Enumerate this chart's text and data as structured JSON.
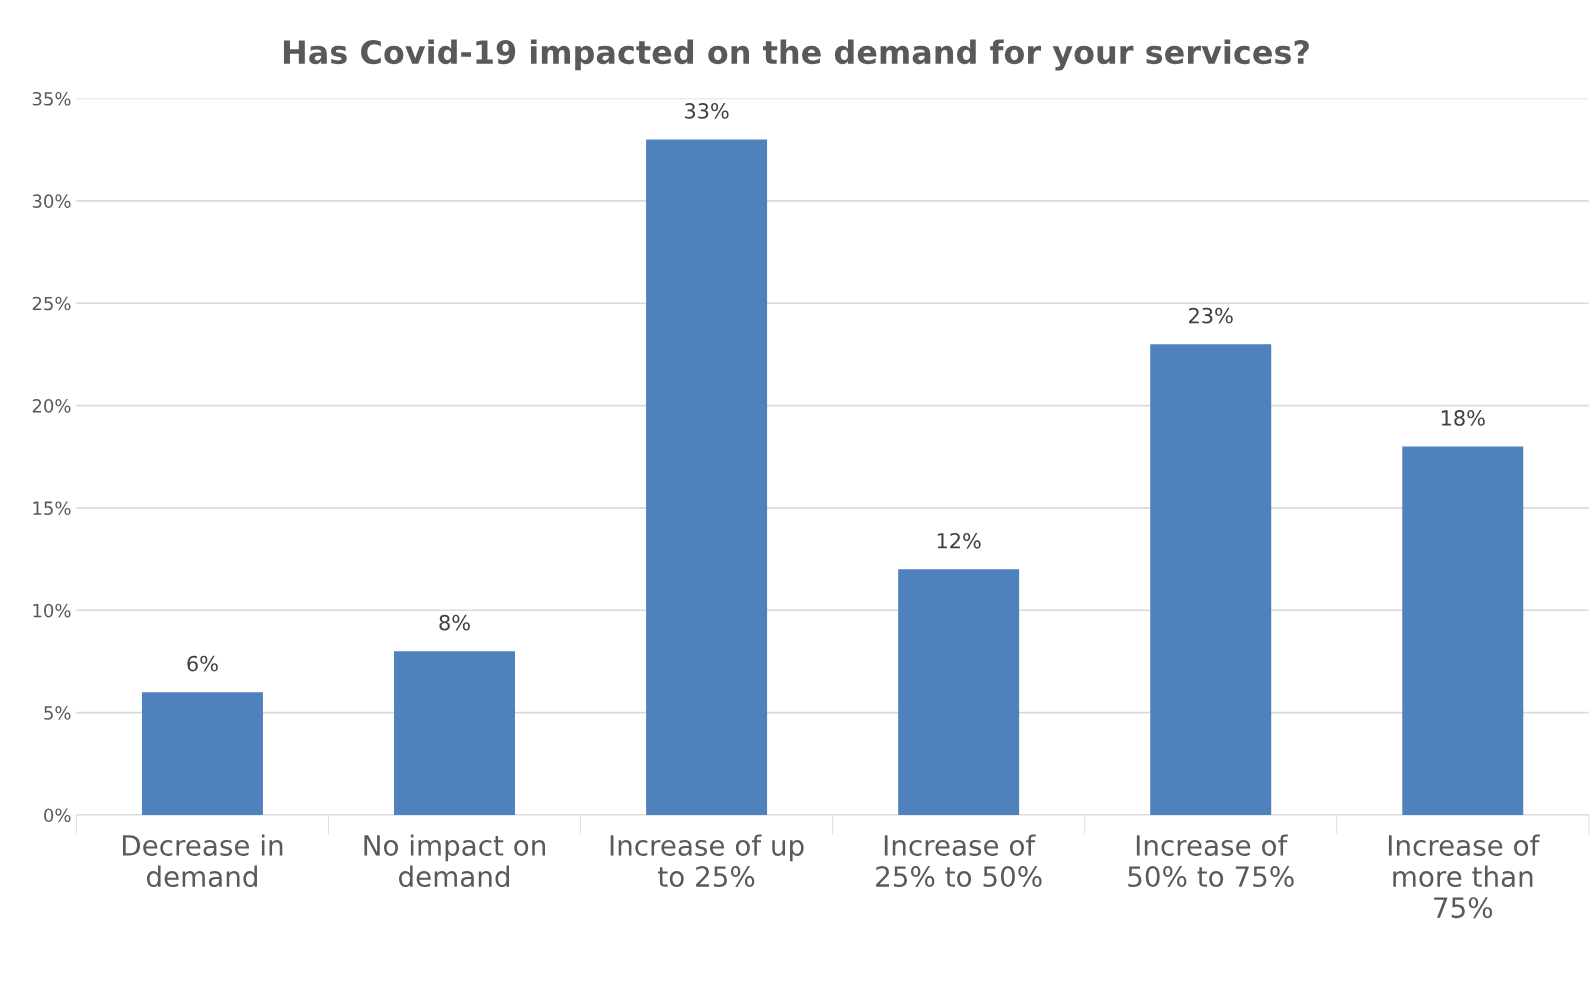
{
  "chart_data": {
    "type": "bar",
    "title": "Has Covid-19 impacted on the demand for your services?",
    "categories": [
      "Decrease in\ndemand",
      "No impact on\ndemand",
      "Increase of up\nto 25%",
      "Increase of\n25% to 50%",
      "Increase of\n50% to 75%",
      "Increase of\nmore than\n75%"
    ],
    "values": [
      6,
      8,
      33,
      12,
      23,
      18
    ],
    "value_labels": [
      "6%",
      "8%",
      "33%",
      "12%",
      "23%",
      "18%"
    ],
    "color": "#4f81bd",
    "ylim": [
      0,
      35
    ],
    "yticks": [
      {
        "value": 0,
        "label": "0%"
      },
      {
        "value": 5,
        "label": "5%"
      },
      {
        "value": 10,
        "label": "10%"
      },
      {
        "value": 15,
        "label": "15%"
      },
      {
        "value": 20,
        "label": "20%"
      },
      {
        "value": 25,
        "label": "25%"
      },
      {
        "value": 30,
        "label": "30%"
      },
      {
        "value": 35,
        "label": "35%"
      }
    ],
    "grid": "y"
  }
}
